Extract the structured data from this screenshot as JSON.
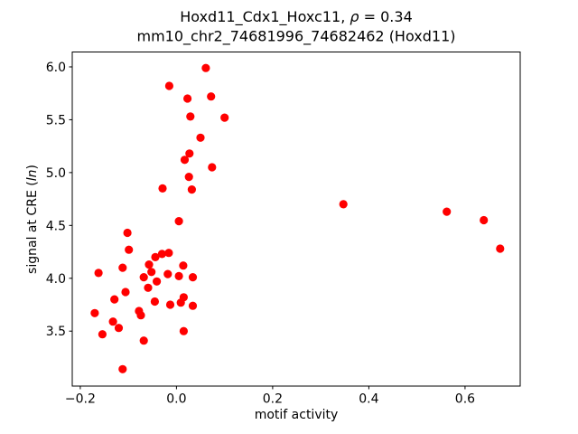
{
  "figure": {
    "background": "#ffffff"
  },
  "chart_data": {
    "type": "scatter",
    "title_line1": {
      "prefix": "Hoxd11_Cdx1_Hoxc11, ",
      "rho": "ρ",
      "suffix": " = 0.34"
    },
    "title_line2": "mm10_chr2_74681996_74682462 (Hoxd11)",
    "xlabel": "motif activity",
    "ylabel": {
      "prefix": "signal at CRE (",
      "italic": "ln",
      "suffix": ")"
    },
    "xlim": [
      -0.2167,
      0.7147
    ],
    "ylim": [
      2.98,
      6.141
    ],
    "grid": false,
    "legend": "none",
    "marker_color": "#ff0000",
    "marker_radius_px": 4.6,
    "x_ticks": [
      {
        "value": -0.2,
        "label": "−0.2"
      },
      {
        "value": 0.0,
        "label": "0.0"
      },
      {
        "value": 0.2,
        "label": "0.2"
      },
      {
        "value": 0.4,
        "label": "0.4"
      },
      {
        "value": 0.6,
        "label": "0.6"
      }
    ],
    "y_ticks": [
      {
        "value": 3.5,
        "label": "3.5"
      },
      {
        "value": 4.0,
        "label": "4.0"
      },
      {
        "value": 4.5,
        "label": "4.5"
      },
      {
        "value": 5.0,
        "label": "5.0"
      },
      {
        "value": 5.5,
        "label": "5.5"
      },
      {
        "value": 6.0,
        "label": "6.0"
      }
    ],
    "points": [
      [
        0.061,
        5.99
      ],
      [
        -0.015,
        5.82
      ],
      [
        0.072,
        5.72
      ],
      [
        0.023,
        5.7
      ],
      [
        0.029,
        5.53
      ],
      [
        0.1,
        5.52
      ],
      [
        0.05,
        5.33
      ],
      [
        0.027,
        5.18
      ],
      [
        0.017,
        5.12
      ],
      [
        0.074,
        5.05
      ],
      [
        0.026,
        4.96
      ],
      [
        -0.029,
        4.85
      ],
      [
        0.032,
        4.84
      ],
      [
        0.347,
        4.7
      ],
      [
        0.562,
        4.63
      ],
      [
        0.639,
        4.55
      ],
      [
        0.005,
        4.54
      ],
      [
        -0.102,
        4.43
      ],
      [
        0.673,
        4.28
      ],
      [
        -0.099,
        4.27
      ],
      [
        -0.016,
        4.24
      ],
      [
        -0.03,
        4.23
      ],
      [
        -0.044,
        4.2
      ],
      [
        -0.057,
        4.13
      ],
      [
        0.014,
        4.12
      ],
      [
        -0.112,
        4.1
      ],
      [
        -0.052,
        4.06
      ],
      [
        -0.162,
        4.05
      ],
      [
        -0.018,
        4.04
      ],
      [
        0.005,
        4.02
      ],
      [
        -0.068,
        4.01
      ],
      [
        0.034,
        4.01
      ],
      [
        -0.041,
        3.97
      ],
      [
        -0.059,
        3.91
      ],
      [
        -0.106,
        3.87
      ],
      [
        0.015,
        3.82
      ],
      [
        -0.129,
        3.8
      ],
      [
        -0.045,
        3.78
      ],
      [
        0.009,
        3.77
      ],
      [
        -0.013,
        3.75
      ],
      [
        0.034,
        3.74
      ],
      [
        -0.078,
        3.69
      ],
      [
        -0.17,
        3.67
      ],
      [
        -0.074,
        3.65
      ],
      [
        -0.132,
        3.59
      ],
      [
        -0.12,
        3.53
      ],
      [
        0.015,
        3.5
      ],
      [
        -0.154,
        3.47
      ],
      [
        -0.068,
        3.41
      ],
      [
        -0.112,
        3.14
      ]
    ]
  }
}
